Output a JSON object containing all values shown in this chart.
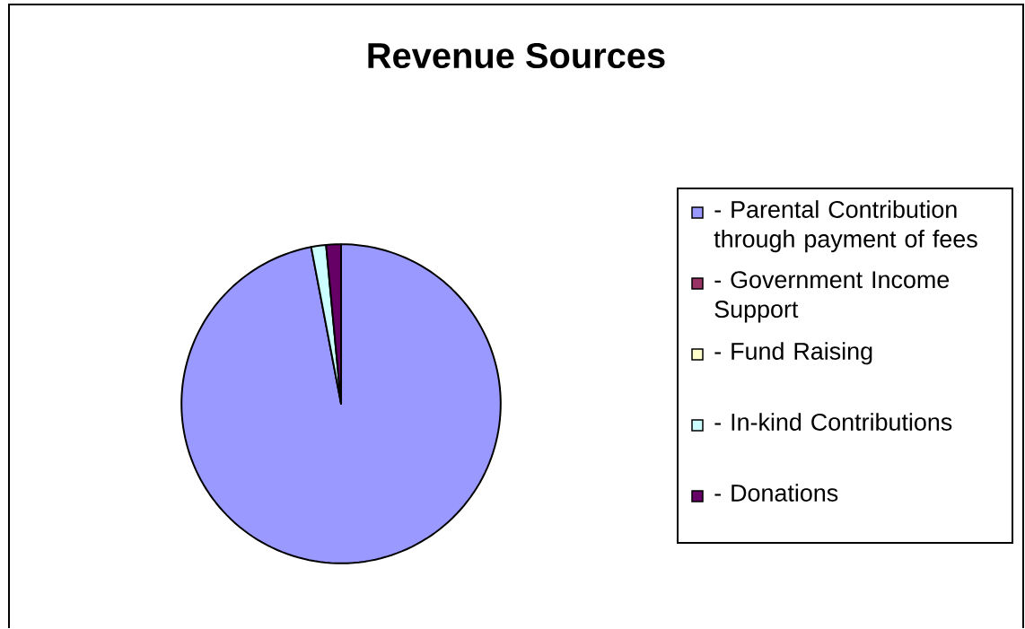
{
  "chart_data": {
    "type": "pie",
    "title": "Revenue Sources",
    "categories": [
      "- Parental Contribution through payment of fees",
      "- Government Income Support",
      "- Fund Raising",
      "- In-kind Contributions",
      "- Donations"
    ],
    "values": [
      97,
      0,
      0,
      1.5,
      1.5
    ],
    "colors": [
      "#9999ff",
      "#993366",
      "#ffffcc",
      "#ccffff",
      "#660066"
    ],
    "legend": "right"
  }
}
